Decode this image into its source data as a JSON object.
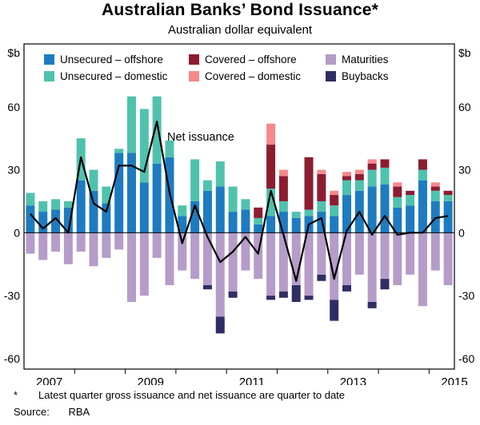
{
  "page": {
    "title": "Australian Banks’ Bond Issuance*",
    "subtitle": "Australian dollar equivalent",
    "footnote_marker": "*",
    "footnote": "Latest quarter gross issuance and net issuance are quarter to date",
    "source_label": "Source:",
    "source": "RBA"
  },
  "chart_data": {
    "type": "bar",
    "stacked": true,
    "title": "Australian Banks’ Bond Issuance*",
    "subtitle": "Australian dollar equivalent",
    "unit_left": "$b",
    "unit_right": "$b",
    "ylim": [
      -65,
      90
    ],
    "yticks": [
      60,
      30,
      0,
      -30,
      -60
    ],
    "grid": false,
    "x_start_year": 2007,
    "year_labels": [
      "2007",
      "2009",
      "2011",
      "2013",
      "2015"
    ],
    "quarters": [
      "2007 Q1",
      "2007 Q2",
      "2007 Q3",
      "2007 Q4",
      "2008 Q1",
      "2008 Q2",
      "2008 Q3",
      "2008 Q4",
      "2009 Q1",
      "2009 Q2",
      "2009 Q3",
      "2009 Q4",
      "2010 Q1",
      "2010 Q2",
      "2010 Q3",
      "2010 Q4",
      "2011 Q1",
      "2011 Q2",
      "2011 Q3",
      "2011 Q4",
      "2012 Q1",
      "2012 Q2",
      "2012 Q3",
      "2012 Q4",
      "2013 Q1",
      "2013 Q2",
      "2013 Q3",
      "2013 Q4",
      "2014 Q1",
      "2014 Q2",
      "2014 Q3",
      "2014 Q4",
      "2015 Q1",
      "2015 Q2"
    ],
    "series": [
      {
        "name": "Unsecured – offshore",
        "color": "#1e7bc0",
        "values": [
          13,
          10,
          11,
          12,
          25,
          20,
          14,
          38,
          38,
          24,
          33,
          36,
          8,
          15,
          20,
          22,
          10,
          11,
          4,
          8,
          10,
          7,
          8,
          10,
          8,
          18,
          20,
          22,
          23,
          12,
          13,
          25,
          15,
          15
        ]
      },
      {
        "name": "Unsecured – domestic",
        "color": "#4fc2ae",
        "values": [
          6,
          5,
          5,
          3,
          20,
          10,
          8,
          2,
          27,
          35,
          32,
          8,
          5,
          20,
          5,
          12,
          12,
          5,
          3,
          13,
          5,
          3,
          3,
          5,
          5,
          7,
          5,
          8,
          8,
          5,
          5,
          5,
          5,
          3
        ]
      },
      {
        "name": "Covered – offshore",
        "color": "#8c1d30",
        "values": [
          0,
          0,
          0,
          0,
          0,
          0,
          0,
          0,
          0,
          0,
          0,
          0,
          0,
          0,
          0,
          0,
          0,
          0,
          5,
          21,
          12,
          0,
          25,
          13,
          5,
          2,
          3,
          3,
          4,
          5,
          2,
          5,
          2,
          2
        ]
      },
      {
        "name": "Covered – domestic",
        "color": "#f5898c",
        "values": [
          0,
          0,
          0,
          0,
          0,
          0,
          0,
          0,
          0,
          0,
          0,
          0,
          0,
          0,
          0,
          0,
          0,
          0,
          0,
          10,
          3,
          0,
          0,
          2,
          2,
          2,
          2,
          2,
          0,
          2,
          0,
          0,
          2,
          0
        ]
      },
      {
        "name": "Maturities",
        "color": "#b69cc9",
        "values": [
          -10,
          -13,
          -9,
          -15,
          -9,
          -16,
          -12,
          -8,
          -33,
          -30,
          -12,
          -25,
          -18,
          -22,
          -25,
          -40,
          -28,
          -18,
          -22,
          -30,
          -28,
          -25,
          -30,
          -20,
          -32,
          -25,
          -20,
          -33,
          -22,
          -25,
          -20,
          -35,
          -18,
          -25
        ]
      },
      {
        "name": "Buybacks",
        "color": "#302d66",
        "values": [
          0,
          0,
          0,
          0,
          0,
          0,
          0,
          0,
          0,
          0,
          0,
          0,
          0,
          0,
          -2,
          -8,
          -3,
          0,
          0,
          -2,
          -3,
          -8,
          -2,
          -3,
          -10,
          -3,
          0,
          -3,
          -5,
          0,
          0,
          0,
          0,
          0
        ]
      }
    ],
    "line": {
      "name": "Net issuance",
      "color": "#000000",
      "values": [
        9,
        2,
        7,
        0,
        36,
        14,
        10,
        32,
        32,
        29,
        53,
        19,
        -5,
        13,
        -2,
        -14,
        -9,
        -2,
        -10,
        20,
        -1,
        -23,
        4,
        7,
        -22,
        1,
        10,
        -1,
        8,
        -1,
        0,
        0,
        7,
        8
      ]
    },
    "annotation_label": "Net issuance",
    "legend_order": [
      "Unsecured – offshore",
      "Covered – offshore",
      "Maturities",
      "Unsecured – domestic",
      "Covered – domestic",
      "Buybacks"
    ],
    "legend_position": "top-inside"
  }
}
